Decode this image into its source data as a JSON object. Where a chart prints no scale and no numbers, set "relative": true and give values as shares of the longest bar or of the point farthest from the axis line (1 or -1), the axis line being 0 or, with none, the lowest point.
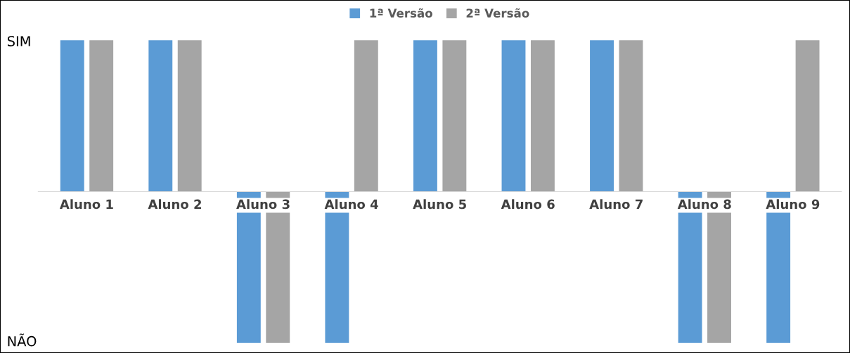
{
  "chart_data": {
    "type": "bar",
    "categories": [
      "Aluno 1",
      "Aluno 2",
      "Aluno 3",
      "Aluno 4",
      "Aluno 5",
      "Aluno 6",
      "Aluno 7",
      "Aluno 8",
      "Aluno 9"
    ],
    "series": [
      {
        "name": "1ª Versão",
        "color": "#5b9bd5",
        "values": [
          1,
          1,
          -1,
          -1,
          1,
          1,
          1,
          -1,
          -1
        ]
      },
      {
        "name": "2ª Versão",
        "color": "#a5a5a5",
        "values": [
          1,
          1,
          -1,
          1,
          1,
          1,
          1,
          -1,
          1
        ]
      }
    ],
    "relative": true,
    "annotations": [
      "SIM",
      "NÃO"
    ],
    "legend": "top"
  }
}
